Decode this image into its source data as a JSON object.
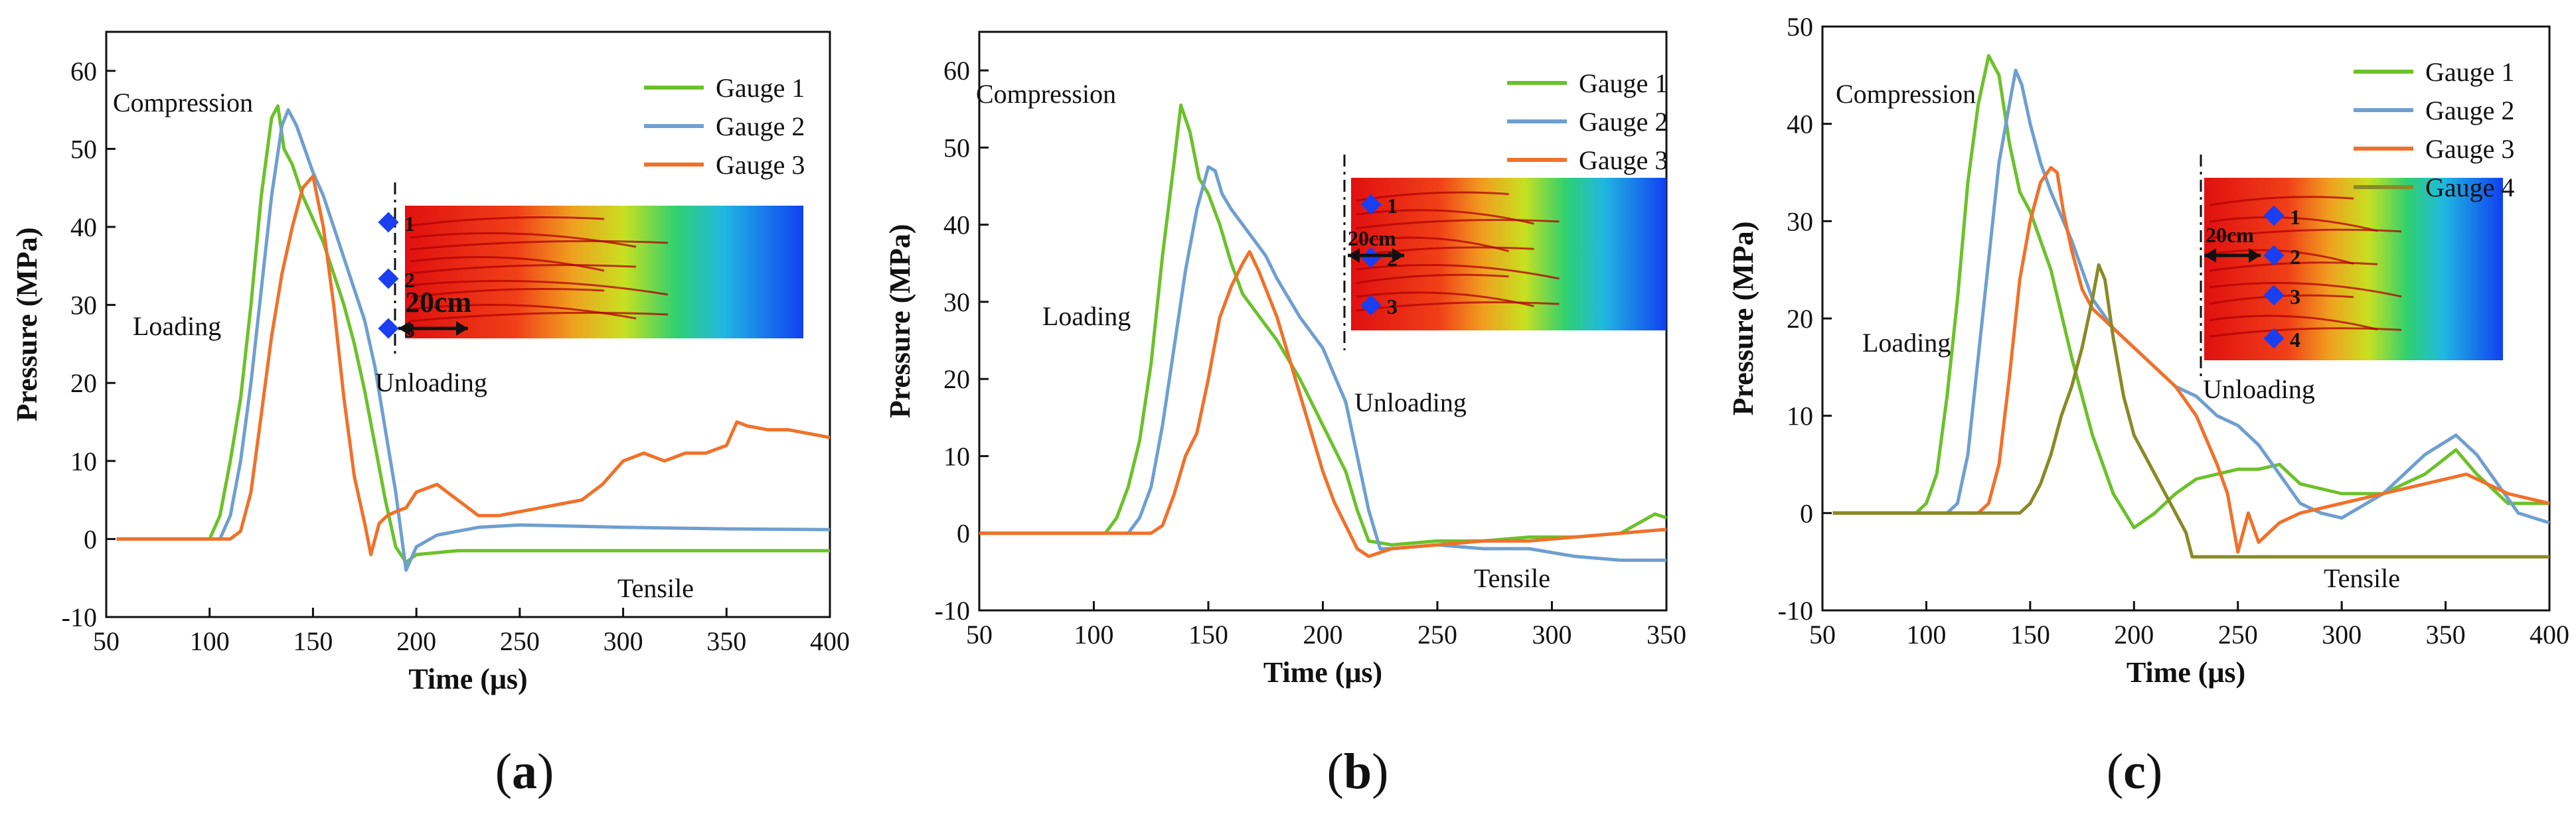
{
  "colors": {
    "gauge1": "#6cc12b",
    "gauge2": "#6f9fd0",
    "gauge3": "#f0712a",
    "gauge4": "#8a8a26",
    "marker": "#1a3ef0"
  },
  "panels": [
    {
      "label": "a",
      "chart_data": {
        "type": "line",
        "xlabel": "Time (μs)",
        "ylabel": "Pressure (MPa)",
        "xlim": [
          50,
          400
        ],
        "ylim": [
          -10,
          65
        ],
        "xticks": [
          50,
          100,
          150,
          200,
          250,
          300,
          350,
          400
        ],
        "yticks": [
          -10,
          0,
          10,
          20,
          30,
          40,
          50,
          60
        ],
        "grid": false,
        "legend": "top-right",
        "series": [
          {
            "name": "Gauge 1",
            "x": [
              55,
              100,
              105,
              110,
              115,
              120,
              125,
              130,
              133,
              136,
              140,
              145,
              150,
              155,
              160,
              165,
              170,
              175,
              180,
              185,
              190,
              195,
              200,
              220,
              250,
              300,
              350,
              400
            ],
            "y": [
              0,
              0,
              3,
              10,
              18,
              30,
              44,
              54,
              55.5,
              50,
              48,
              44,
              41,
              38,
              34,
              30,
              25,
              19,
              12,
              5,
              -1,
              -3,
              -2,
              -1.5,
              -1.5,
              -1.5,
              -1.5,
              -1.5
            ]
          },
          {
            "name": "Gauge 2",
            "x": [
              55,
              105,
              110,
              115,
              120,
              125,
              130,
              135,
              138,
              142,
              146,
              150,
              155,
              160,
              165,
              170,
              175,
              180,
              185,
              190,
              195,
              200,
              210,
              230,
              250,
              300,
              350,
              400
            ],
            "y": [
              0,
              0,
              3,
              10,
              20,
              32,
              44,
              53,
              55,
              53,
              50,
              47,
              44,
              40,
              36,
              32,
              28,
              22,
              14,
              6,
              -4,
              -1,
              0.5,
              1.5,
              1.8,
              1.5,
              1.3,
              1.2
            ]
          },
          {
            "name": "Gauge 3",
            "x": [
              55,
              110,
              115,
              120,
              125,
              130,
              135,
              140,
              145,
              150,
              155,
              160,
              165,
              170,
              175,
              178,
              182,
              186,
              190,
              195,
              200,
              210,
              220,
              230,
              240,
              250,
              260,
              270,
              280,
              290,
              300,
              310,
              320,
              330,
              340,
              350,
              355,
              360,
              370,
              380,
              390,
              400
            ],
            "y": [
              0,
              0,
              1,
              6,
              16,
              26,
              34,
              40,
              45,
              46.5,
              40,
              30,
              18,
              8,
              2,
              -2,
              2,
              3,
              3.5,
              4,
              6,
              7,
              5,
              3,
              3,
              3.5,
              4,
              4.5,
              5,
              7,
              10,
              11,
              10,
              11,
              11,
              12,
              15,
              14.5,
              14,
              14,
              13.5,
              13
            ]
          }
        ],
        "annotations": [
          "Compression",
          "Loading",
          "Unloading",
          "Tensile",
          "20cm",
          "1",
          "2",
          "3"
        ]
      }
    },
    {
      "label": "b",
      "chart_data": {
        "type": "line",
        "xlabel": "Time (μs)",
        "ylabel": "Pressure (MPa)",
        "xlim": [
          50,
          350
        ],
        "ylim": [
          -10,
          65
        ],
        "xticks": [
          50,
          100,
          150,
          200,
          250,
          300,
          350
        ],
        "yticks": [
          -10,
          0,
          10,
          20,
          30,
          40,
          50,
          60
        ],
        "grid": false,
        "legend": "top-right",
        "series": [
          {
            "name": "Gauge 1",
            "x": [
              50,
              105,
              110,
              115,
              120,
              125,
              130,
              135,
              138,
              142,
              146,
              150,
              155,
              160,
              165,
              170,
              180,
              190,
              200,
              210,
              215,
              220,
              230,
              250,
              270,
              290,
              310,
              330,
              345,
              350
            ],
            "y": [
              0,
              0,
              2,
              6,
              12,
              22,
              36,
              48,
              55.5,
              52,
              46,
              44,
              40,
              35,
              31,
              29,
              25,
              20,
              14,
              8,
              3,
              -1,
              -1.5,
              -1,
              -1,
              -0.5,
              -0.5,
              0,
              2.5,
              2
            ]
          },
          {
            "name": "Gauge 2",
            "x": [
              50,
              115,
              120,
              125,
              130,
              135,
              140,
              145,
              150,
              153,
              156,
              160,
              165,
              170,
              175,
              180,
              190,
              200,
              210,
              215,
              220,
              225,
              230,
              250,
              270,
              290,
              310,
              330,
              350
            ],
            "y": [
              0,
              0,
              2,
              6,
              14,
              24,
              34,
              42,
              47.5,
              47,
              44,
              42,
              40,
              38,
              36,
              33,
              28,
              24,
              17,
              10,
              3,
              -2,
              -2,
              -1.5,
              -2,
              -2,
              -3,
              -3.5,
              -3.5
            ]
          },
          {
            "name": "Gauge 3",
            "x": [
              50,
              125,
              130,
              135,
              140,
              145,
              150,
              155,
              160,
              165,
              168,
              172,
              176,
              180,
              185,
              190,
              195,
              200,
              205,
              210,
              215,
              220,
              230,
              250,
              270,
              290,
              310,
              330,
              350
            ],
            "y": [
              0,
              0,
              1,
              5,
              10,
              13,
              20,
              28,
              32,
              35,
              36.5,
              34,
              31,
              28,
              23,
              18,
              13,
              8,
              4,
              1,
              -2,
              -3,
              -2,
              -1.5,
              -1,
              -1,
              -0.5,
              0,
              0.5
            ]
          }
        ],
        "annotations": [
          "Compression",
          "Loading",
          "Unloading",
          "Tensile",
          "20cm",
          "1",
          "2",
          "3"
        ]
      }
    },
    {
      "label": "c",
      "chart_data": {
        "type": "line",
        "xlabel": "Time (μs)",
        "ylabel": "Pressure (MPa)",
        "xlim": [
          50,
          400
        ],
        "ylim": [
          -10,
          50
        ],
        "xticks": [
          50,
          100,
          150,
          200,
          250,
          300,
          350,
          400
        ],
        "yticks": [
          -10,
          0,
          10,
          20,
          30,
          40,
          50
        ],
        "grid": false,
        "legend": "top-right",
        "series": [
          {
            "name": "Gauge 1",
            "x": [
              55,
              95,
              100,
              105,
              110,
              115,
              120,
              125,
              130,
              135,
              140,
              145,
              150,
              160,
              170,
              180,
              190,
              200,
              210,
              220,
              230,
              240,
              250,
              260,
              270,
              280,
              300,
              320,
              340,
              355,
              365,
              380,
              400
            ],
            "y": [
              0,
              0,
              1,
              4,
              12,
              22,
              34,
              42,
              47,
              45,
              38,
              33,
              31,
              25,
              16,
              8,
              2,
              -1.5,
              0,
              2,
              3.5,
              4,
              4.5,
              4.5,
              5,
              3,
              2,
              2,
              4,
              6.5,
              4,
              1,
              1
            ]
          },
          {
            "name": "Gauge 2",
            "x": [
              55,
              110,
              115,
              120,
              125,
              130,
              135,
              140,
              143,
              146,
              150,
              155,
              160,
              170,
              180,
              190,
              200,
              210,
              220,
              230,
              240,
              250,
              260,
              270,
              280,
              290,
              300,
              320,
              340,
              355,
              365,
              375,
              385,
              400
            ],
            "y": [
              0,
              0,
              1,
              6,
              16,
              26,
              36,
              42,
              45.5,
              44,
              40,
              36,
              33,
              28,
              22,
              19,
              17,
              15,
              13,
              12,
              10,
              9,
              7,
              4,
              1,
              0,
              -0.5,
              2,
              6,
              8,
              6,
              3,
              0,
              -1
            ]
          },
          {
            "name": "Gauge 3",
            "x": [
              55,
              125,
              130,
              135,
              140,
              145,
              150,
              155,
              160,
              163,
              166,
              170,
              175,
              180,
              190,
              200,
              210,
              220,
              230,
              240,
              245,
              250,
              255,
              260,
              270,
              280,
              300,
              320,
              340,
              360,
              380,
              400
            ],
            "y": [
              0,
              0,
              1,
              5,
              14,
              24,
              30,
              34,
              35.5,
              35,
              31,
              27,
              23,
              21,
              19,
              17,
              15,
              13,
              10,
              5,
              2,
              -4,
              0,
              -3,
              -1,
              0,
              1,
              2,
              3,
              4,
              2,
              1
            ]
          },
          {
            "name": "Gauge 4",
            "x": [
              55,
              145,
              150,
              155,
              160,
              165,
              170,
              175,
              180,
              183,
              186,
              190,
              195,
              200,
              210,
              220,
              225,
              228,
              240,
              260,
              300,
              350,
              400
            ],
            "y": [
              0,
              0,
              1,
              3,
              6,
              10,
              13,
              17,
              22,
              25.5,
              24,
              18,
              12,
              8,
              4,
              0,
              -2,
              -4.5,
              -4.5,
              -4.5,
              -4.5,
              -4.5,
              -4.5
            ]
          }
        ],
        "annotations": [
          "Compression",
          "Loading",
          "Unloading",
          "Tensile",
          "20cm",
          "1",
          "2",
          "3",
          "4"
        ]
      }
    }
  ]
}
